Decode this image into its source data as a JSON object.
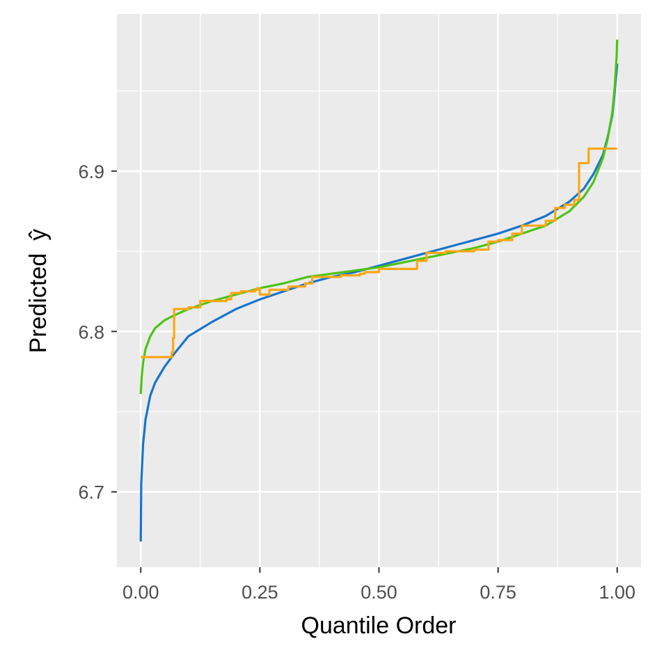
{
  "chart_data": {
    "type": "line",
    "title": "",
    "xlabel": "Quantile Order",
    "ylabel": "Predicted",
    "ylabel_symbol": "ŷ",
    "xlim": [
      -0.05,
      1.05
    ],
    "ylim": [
      6.653,
      6.998
    ],
    "x_ticks": [
      0.0,
      0.25,
      0.5,
      0.75,
      1.0
    ],
    "x_tick_labels": [
      "0.00",
      "0.25",
      "0.50",
      "0.75",
      "1.00"
    ],
    "y_ticks": [
      6.7,
      6.8,
      6.9
    ],
    "y_tick_labels": [
      "6.7",
      "6.8",
      "6.9"
    ],
    "grid": true,
    "legend": "none",
    "colors": {
      "panel_bg": "#ebebeb",
      "grid": "#ffffff",
      "blue": "#1874cd",
      "green": "#4cc414",
      "orange": "#ffa614"
    },
    "series": [
      {
        "color": "#1874cd",
        "x": [
          0.0,
          0.001,
          0.005,
          0.01,
          0.02,
          0.03,
          0.05,
          0.07,
          0.1,
          0.15,
          0.2,
          0.25,
          0.3,
          0.35,
          0.4,
          0.45,
          0.5,
          0.55,
          0.6,
          0.65,
          0.7,
          0.75,
          0.8,
          0.85,
          0.9,
          0.93,
          0.95,
          0.97,
          0.98,
          0.99,
          0.995,
          0.999,
          1.0
        ],
        "y": [
          6.669,
          6.705,
          6.73,
          6.745,
          6.76,
          6.768,
          6.778,
          6.786,
          6.797,
          6.806,
          6.814,
          6.82,
          6.825,
          6.83,
          6.834,
          6.837,
          6.841,
          6.845,
          6.849,
          6.853,
          6.857,
          6.861,
          6.866,
          6.872,
          6.881,
          6.889,
          6.898,
          6.91,
          6.921,
          6.935,
          6.95,
          6.963,
          6.967
        ]
      },
      {
        "color": "#4cc414",
        "x": [
          0.0,
          0.002,
          0.005,
          0.01,
          0.02,
          0.03,
          0.05,
          0.07,
          0.1,
          0.15,
          0.2,
          0.25,
          0.3,
          0.35,
          0.4,
          0.45,
          0.5,
          0.55,
          0.6,
          0.65,
          0.7,
          0.75,
          0.8,
          0.85,
          0.9,
          0.93,
          0.95,
          0.97,
          0.98,
          0.99,
          0.995,
          0.999,
          1.0
        ],
        "y": [
          6.761,
          6.772,
          6.781,
          6.789,
          6.797,
          6.802,
          6.807,
          6.81,
          6.814,
          6.819,
          6.823,
          6.827,
          6.83,
          6.834,
          6.836,
          6.838,
          6.84,
          6.843,
          6.846,
          6.849,
          6.852,
          6.856,
          6.861,
          6.866,
          6.875,
          6.884,
          6.893,
          6.908,
          6.92,
          6.937,
          6.953,
          6.972,
          6.982
        ]
      },
      {
        "color": "#ffa614",
        "step": true,
        "x": [
          0.0,
          0.065,
          0.068,
          0.07,
          0.1,
          0.125,
          0.18,
          0.19,
          0.21,
          0.24,
          0.245,
          0.25,
          0.27,
          0.31,
          0.345,
          0.36,
          0.42,
          0.46,
          0.47,
          0.5,
          0.58,
          0.6,
          0.64,
          0.7,
          0.73,
          0.75,
          0.78,
          0.8,
          0.85,
          0.87,
          0.89,
          0.91,
          0.92,
          0.94,
          1.0
        ],
        "y": [
          6.784,
          6.787,
          6.796,
          6.814,
          6.815,
          6.819,
          6.82,
          6.824,
          6.825,
          6.826,
          6.827,
          6.823,
          6.826,
          6.828,
          6.83,
          6.834,
          6.835,
          6.836,
          6.837,
          6.839,
          6.844,
          6.849,
          6.85,
          6.851,
          6.856,
          6.857,
          6.861,
          6.866,
          6.869,
          6.877,
          6.879,
          6.882,
          6.905,
          6.914,
          6.914
        ]
      }
    ]
  }
}
